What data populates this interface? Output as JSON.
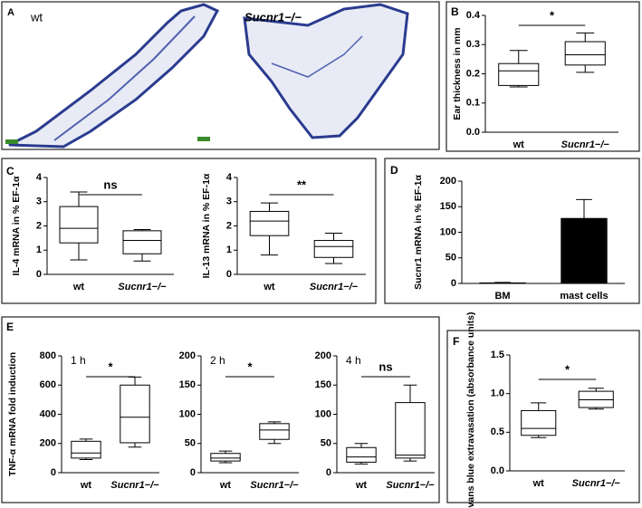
{
  "panel_a": {
    "panel": "A",
    "labels": [
      "wt",
      "Sucnr1−/−"
    ]
  },
  "chart_data": [
    {
      "type": "box",
      "panel": "B",
      "ylabel": "Ear thickness in mm",
      "categories": [
        "wt",
        "Sucnr1−/−"
      ],
      "boxes": [
        {
          "min": 0.155,
          "q1": 0.16,
          "median": 0.21,
          "q3": 0.235,
          "max": 0.28
        },
        {
          "min": 0.205,
          "q1": 0.23,
          "median": 0.265,
          "q3": 0.31,
          "max": 0.34
        }
      ],
      "ylim": [
        0,
        0.4
      ],
      "yticks": [
        {
          "value": 0,
          "label": "0.0"
        },
        0.1,
        0.2,
        0.3,
        0.4
      ],
      "significance": "*"
    },
    {
      "type": "box",
      "panel": "C",
      "ylabel": "IL-4 mRNA in % EF-1α",
      "categories": [
        "wt",
        "Sucnr1−/−"
      ],
      "boxes": [
        {
          "min": 0.6,
          "q1": 1.3,
          "median": 1.9,
          "q3": 2.8,
          "max": 3.4
        },
        {
          "min": 0.55,
          "q1": 0.85,
          "median": 1.4,
          "q3": 1.8,
          "max": 1.85
        }
      ],
      "ylim": [
        0,
        4
      ],
      "yticks": [
        0,
        1,
        2,
        3,
        4
      ],
      "significance": "ns"
    },
    {
      "type": "box",
      "ylabel": "IL-13 mRNA in % EF-1α",
      "categories": [
        "wt",
        "Sucnr1−/−"
      ],
      "boxes": [
        {
          "min": 0.8,
          "q1": 1.6,
          "median": 2.2,
          "q3": 2.6,
          "max": 2.95
        },
        {
          "min": 0.45,
          "q1": 0.7,
          "median": 1.15,
          "q3": 1.4,
          "max": 1.7
        }
      ],
      "ylim": [
        0,
        4
      ],
      "yticks": [
        0,
        1,
        2,
        3,
        4
      ],
      "significance": "**"
    },
    {
      "type": "bar",
      "panel": "D",
      "ylabel": "Sucnr1 mRNA in % EF-1α",
      "categories": [
        "BM",
        "mast cells"
      ],
      "values": [
        1,
        127
      ],
      "errors": [
        1,
        37
      ],
      "color": "#000000",
      "ylim": [
        0,
        200
      ],
      "yticks": [
        0,
        50,
        100,
        150,
        200
      ]
    },
    {
      "type": "box",
      "panel": "E",
      "title": "1 h",
      "ylabel": "TNF-α mRNA fold induction",
      "categories": [
        "wt",
        "Sucnr1−/−"
      ],
      "boxes": [
        {
          "min": 90,
          "q1": 100,
          "median": 135,
          "q3": 215,
          "max": 230
        },
        {
          "min": 175,
          "q1": 205,
          "median": 380,
          "q3": 600,
          "max": 655
        }
      ],
      "ylim": [
        0,
        800
      ],
      "yticks": [
        0,
        200,
        400,
        600,
        800
      ],
      "significance": "*"
    },
    {
      "type": "box",
      "title": "2 h",
      "categories": [
        "wt",
        "Sucnr1−/−"
      ],
      "boxes": [
        {
          "min": 17,
          "q1": 20,
          "median": 25,
          "q3": 33,
          "max": 37
        },
        {
          "min": 50,
          "q1": 57,
          "median": 73,
          "q3": 84,
          "max": 87
        }
      ],
      "ylim": [
        0,
        200
      ],
      "yticks": [
        0,
        50,
        100,
        150,
        200
      ],
      "significance": "*"
    },
    {
      "type": "box",
      "title": "4 h",
      "categories": [
        "wt",
        "Sucnr1−/−"
      ],
      "boxes": [
        {
          "min": 15,
          "q1": 18,
          "median": 27,
          "q3": 43,
          "max": 50
        },
        {
          "min": 20,
          "q1": 25,
          "median": 30,
          "q3": 120,
          "max": 150
        }
      ],
      "ylim": [
        0,
        200
      ],
      "yticks": [
        0,
        50,
        100,
        150,
        200
      ],
      "significance": "ns"
    },
    {
      "type": "box",
      "panel": "F",
      "ylabel": "Evans blue extravasation (absorbance units)",
      "categories": [
        "wt",
        "Sucnr1−/−"
      ],
      "boxes": [
        {
          "min": 0.43,
          "q1": 0.46,
          "median": 0.55,
          "q3": 0.78,
          "max": 0.88
        },
        {
          "min": 0.8,
          "q1": 0.82,
          "median": 0.92,
          "q3": 1.03,
          "max": 1.07
        }
      ],
      "ylim": [
        0,
        1.5
      ],
      "yticks": [
        {
          "value": 0,
          "label": "0.0"
        },
        0.5,
        {
          "value": 1,
          "label": "1.0"
        },
        1.5
      ],
      "significance": "*"
    }
  ]
}
